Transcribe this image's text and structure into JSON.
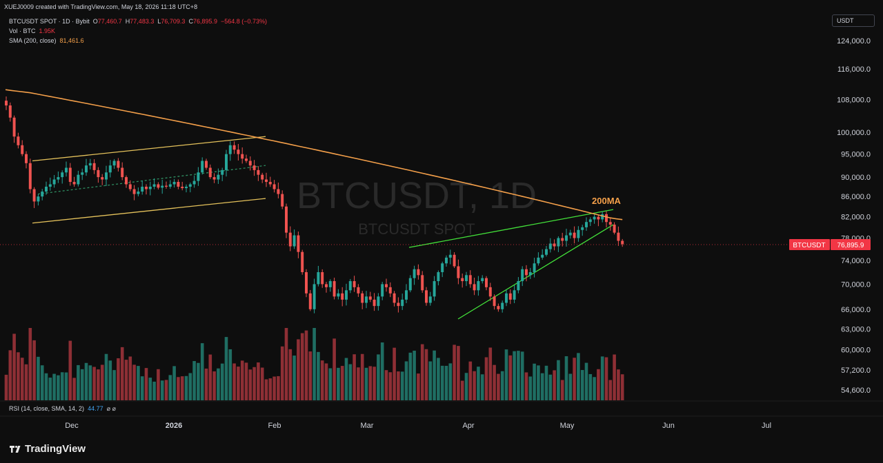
{
  "header": {
    "caption": "XUEJ0009 created with TradingView.com, May 18, 2026 11:18 UTC+8"
  },
  "legend": {
    "symbol": "BTCUSDT SPOT · 1D · Bybit",
    "ohlc": {
      "o_label": "O",
      "o": "77,460.7",
      "h_label": "H",
      "h": "77,483.3",
      "l_label": "L",
      "l": "76,709.3",
      "c_label": "C",
      "c": "76,895.9",
      "change": "−564.8 (−0.73%)"
    },
    "vol_label": "Vol · BTC",
    "vol_value": "1.95K",
    "sma_label": "SMA (200, close)",
    "sma_value": "81,461.6"
  },
  "currency_button": "USDT",
  "watermark": {
    "main": "BTCUSDT, 1D",
    "sub": "BTCUSDT SPOT"
  },
  "annotation": "200MA",
  "price_tag": {
    "symbol": "BTCUSDT",
    "value": "76,895.9"
  },
  "rsi": {
    "label": "RSI (14, close, SMA, 14, 2)",
    "value": "44.77",
    "icons": "⌀ ⌀"
  },
  "logo": {
    "text": "TradingView"
  },
  "colors": {
    "up": "#26a69a",
    "down": "#ef5350",
    "ma": "#f5a04a",
    "channel": "#e6c35c",
    "wedge": "#43e33a",
    "price_tag": "#f23645"
  },
  "chart_data": {
    "type": "candlestick",
    "title": "BTCUSDT, 1D",
    "price_axis_ticks": [
      "124,000.0",
      "116,000.0",
      "108,000.0",
      "100,000.0",
      "95,000.0",
      "90,000.0",
      "86,000.0",
      "82,000.0",
      "78,000.0",
      "74,000.0",
      "70,000.0",
      "66,000.0",
      "63,000.0",
      "60,000.0",
      "57,200.0",
      "54,600.0"
    ],
    "time_axis_ticks": [
      "Dec",
      "2026",
      "Feb",
      "Mar",
      "Apr",
      "May",
      "Jun",
      "Jul"
    ],
    "start_date": "2025-11-15",
    "closes": [
      106500,
      103500,
      99000,
      97000,
      95000,
      93000,
      87500,
      85000,
      86000,
      87000,
      88000,
      88500,
      89500,
      90000,
      91000,
      92000,
      89000,
      88500,
      90500,
      91000,
      92500,
      93000,
      91500,
      90000,
      89500,
      91000,
      92500,
      93500,
      92000,
      90000,
      88500,
      87500,
      86500,
      87000,
      88000,
      87500,
      88000,
      88500,
      87800,
      88200,
      88000,
      88500,
      89000,
      88000,
      87700,
      88000,
      88500,
      89200,
      91000,
      93500,
      92000,
      90000,
      89500,
      90500,
      91500,
      95000,
      97000,
      96000,
      95000,
      94000,
      93500,
      92500,
      91500,
      90500,
      89500,
      89000,
      88500,
      87500,
      86500,
      84000,
      79000,
      76500,
      78500,
      75500,
      72000,
      68500,
      66000,
      70000,
      72000,
      70000,
      69500,
      70500,
      68000,
      68500,
      67500,
      69000,
      70500,
      69500,
      68500,
      67000,
      68000,
      67500,
      66500,
      68000,
      70000,
      69500,
      68500,
      67000,
      66500,
      67500,
      69000,
      71000,
      72500,
      71500,
      69000,
      67000,
      68000,
      70500,
      72000,
      73500,
      74500,
      75000,
      73000,
      71000,
      70500,
      71500,
      70000,
      69000,
      70500,
      71000,
      69500,
      68000,
      66500,
      66000,
      67000,
      68500,
      67500,
      69000,
      70500,
      72500,
      71500,
      72000,
      73500,
      74500,
      75000,
      76000,
      77000,
      76500,
      78000,
      77500,
      78500,
      79000,
      78000,
      79500,
      80000,
      81000,
      81500,
      82000,
      81500,
      82500,
      81000,
      80500,
      79000,
      77500,
      76895.9
    ],
    "sma_200": [
      110500,
      110300,
      110100,
      109900,
      109700,
      109400,
      109100,
      108800,
      108500,
      108200,
      107900,
      107600,
      107300,
      107000,
      106700,
      106400,
      106100,
      105800,
      105500,
      105200,
      104900,
      104600,
      104300,
      104000,
      103700,
      103400,
      103100,
      102800,
      102500,
      102200,
      101900,
      101600,
      101300,
      101000,
      100700,
      100400,
      100100,
      99800,
      99500,
      99200,
      98900,
      98600,
      98300,
      98000,
      97700,
      97400,
      97100,
      96800,
      96500,
      96200,
      95900,
      95600,
      95300,
      95000,
      94700,
      94400,
      94100,
      93800,
      93500,
      93200,
      92900,
      92600,
      92300,
      92000,
      91700,
      91400,
      91100,
      90800,
      90500,
      90200,
      89900,
      89600,
      89300,
      89000,
      88700,
      88400,
      88100,
      87800,
      87500,
      87200,
      86900,
      86600,
      86300,
      86000,
      85700,
      85400,
      85100,
      84800,
      84500,
      84200,
      83900,
      83600,
      83300,
      83000,
      82700,
      82400,
      82100,
      81800,
      81600,
      81461.6
    ],
    "volume_relative": "bars scaled to candle direction",
    "annotations": [
      "200MA"
    ]
  }
}
